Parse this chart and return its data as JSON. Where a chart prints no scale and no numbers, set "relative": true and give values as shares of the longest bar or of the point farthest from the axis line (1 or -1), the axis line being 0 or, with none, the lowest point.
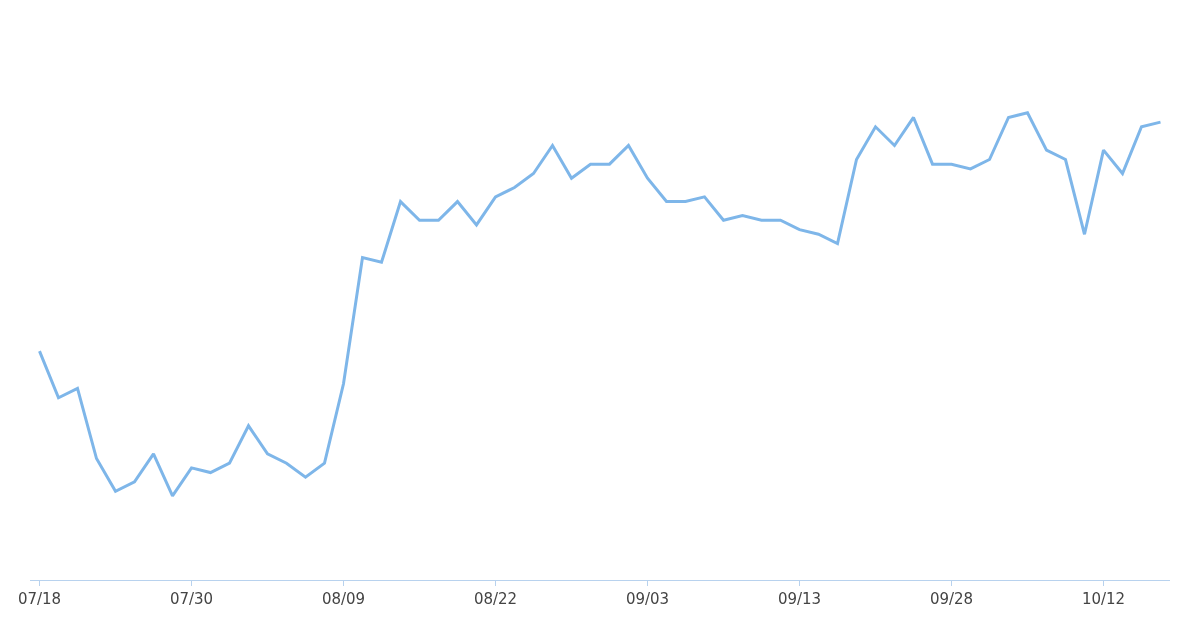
{
  "chart_data": {
    "type": "line",
    "relative": true,
    "marker": "none",
    "line_style": "solid",
    "categories": [
      "07/18",
      null,
      null,
      null,
      null,
      null,
      null,
      null,
      "07/30",
      null,
      null,
      null,
      null,
      null,
      null,
      null,
      "08/09",
      null,
      null,
      null,
      null,
      null,
      null,
      null,
      "08/22",
      null,
      null,
      null,
      null,
      null,
      null,
      null,
      "09/03",
      null,
      null,
      null,
      null,
      null,
      null,
      null,
      "09/13",
      null,
      null,
      null,
      null,
      null,
      null,
      null,
      "09/28",
      null,
      null,
      null,
      null,
      null,
      null,
      null,
      "10/12",
      null,
      null,
      null
    ],
    "series": [
      {
        "color": "#7eb6e9",
        "values": [
          0.49,
          0.39,
          0.41,
          0.26,
          0.19,
          0.21,
          0.27,
          0.18,
          0.24,
          0.23,
          0.25,
          0.33,
          0.27,
          0.25,
          0.22,
          0.25,
          0.42,
          0.69,
          0.68,
          0.81,
          0.77,
          0.77,
          0.81,
          0.76,
          0.82,
          0.84,
          0.87,
          0.93,
          0.86,
          0.89,
          0.89,
          0.93,
          0.86,
          0.81,
          0.81,
          0.82,
          0.77,
          0.78,
          0.77,
          0.77,
          0.75,
          0.74,
          0.72,
          0.9,
          0.97,
          0.93,
          0.99,
          0.89,
          0.89,
          0.88,
          0.9,
          0.99,
          1,
          0.92,
          0.9,
          0.74,
          0.92,
          0.87,
          0.97,
          0.98
        ]
      }
    ]
  }
}
